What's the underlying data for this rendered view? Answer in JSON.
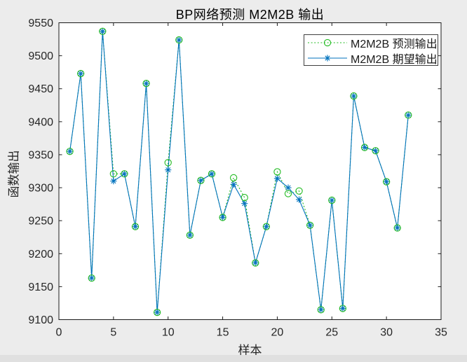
{
  "figure": {
    "background_color": "#ececec",
    "plot_background_color": "#ffffff",
    "axis_color": "#1a1a1a",
    "tick_label_color": "#262626"
  },
  "chart_data": {
    "type": "line",
    "title": "BP网络预测 M2M2B 输出",
    "xlabel": "样本",
    "ylabel": "函数输出",
    "xlim": [
      0,
      35
    ],
    "ylim": [
      9100,
      9550
    ],
    "x_ticks": [
      0,
      5,
      10,
      15,
      20,
      25,
      30,
      35
    ],
    "y_ticks": [
      9100,
      9150,
      9200,
      9250,
      9300,
      9350,
      9400,
      9450,
      9500,
      9550
    ],
    "grid": false,
    "legend_position": "top-right",
    "x": [
      1,
      2,
      3,
      4,
      5,
      6,
      7,
      8,
      9,
      10,
      11,
      12,
      13,
      14,
      15,
      16,
      17,
      18,
      19,
      20,
      21,
      22,
      23,
      24,
      25,
      26,
      27,
      28,
      29,
      30,
      31,
      32
    ],
    "series": [
      {
        "name": "M2M2B 预测输出",
        "color": "#22bb22",
        "line_style": "dotted",
        "marker": "circle",
        "values": [
          9355,
          9473,
          9163,
          9537,
          9321,
          9321,
          9241,
          9458,
          9111,
          9338,
          9524,
          9228,
          9311,
          9321,
          9255,
          9315,
          9285,
          9186,
          9241,
          9324,
          9291,
          9295,
          9243,
          9115,
          9281,
          9117,
          9439,
          9361,
          9356,
          9309,
          9239,
          9410
        ]
      },
      {
        "name": "M2M2B 期望输出",
        "color": "#0072bd",
        "line_style": "solid",
        "marker": "asterisk",
        "values": [
          9355,
          9473,
          9163,
          9537,
          9310,
          9321,
          9241,
          9458,
          9111,
          9327,
          9524,
          9228,
          9311,
          9321,
          9255,
          9305,
          9276,
          9186,
          9241,
          9314,
          9300,
          9282,
          9243,
          9115,
          9281,
          9117,
          9439,
          9361,
          9356,
          9309,
          9239,
          9410
        ]
      }
    ]
  }
}
